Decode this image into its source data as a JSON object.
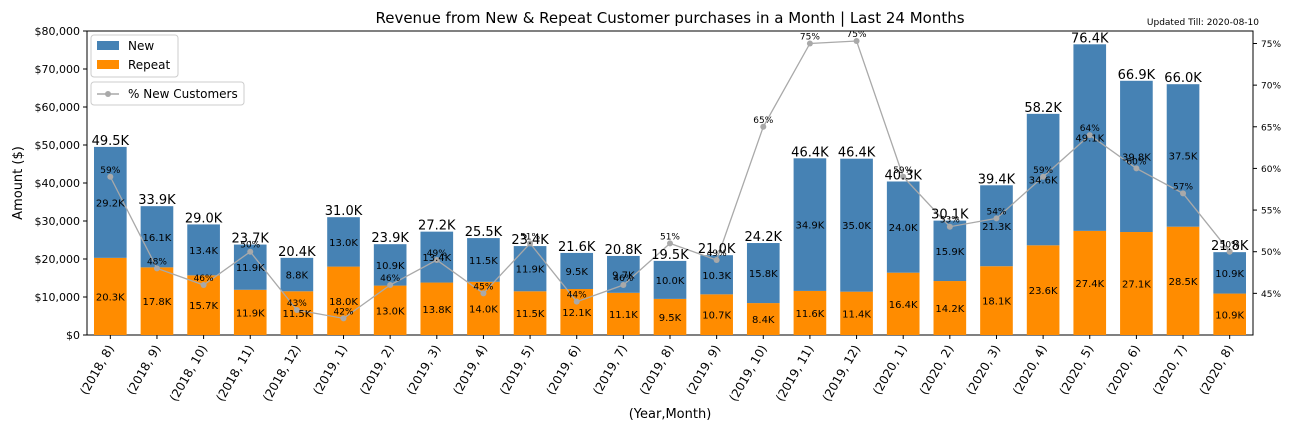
{
  "chart_data": {
    "type": "bar",
    "title": "Revenue from New & Repeat Customer purchases in a Month | Last 24 Months",
    "subtitle": "Updated Till: 2020-08-10",
    "xlabel": "(Year,Month)",
    "ylabel": "Amount ($)",
    "ylim": [
      0,
      80000
    ],
    "y2lim": [
      40,
      76.5
    ],
    "stacked": true,
    "categories": [
      "(2018, 8)",
      "(2018, 9)",
      "(2018, 10)",
      "(2018, 11)",
      "(2018, 12)",
      "(2019, 1)",
      "(2019, 2)",
      "(2019, 3)",
      "(2019, 4)",
      "(2019, 5)",
      "(2019, 6)",
      "(2019, 7)",
      "(2019, 8)",
      "(2019, 9)",
      "(2019, 10)",
      "(2019, 11)",
      "(2019, 12)",
      "(2020, 1)",
      "(2020, 2)",
      "(2020, 3)",
      "(2020, 4)",
      "(2020, 5)",
      "(2020, 6)",
      "(2020, 7)",
      "(2020, 8)"
    ],
    "y_ticks": [
      "$0",
      "$10,000",
      "$20,000",
      "$30,000",
      "$40,000",
      "$50,000",
      "$60,000",
      "$70,000",
      "$80,000"
    ],
    "y2_ticks": [
      "45%",
      "50%",
      "55%",
      "60%",
      "65%",
      "70%",
      "75%"
    ],
    "series": [
      {
        "name": "New",
        "color": "#4682b4",
        "values": [
          29200,
          16100,
          13400,
          11900,
          8800,
          13000,
          10900,
          13400,
          11500,
          11900,
          9500,
          9700,
          10000,
          10300,
          15800,
          34900,
          35000,
          24000,
          15900,
          21300,
          34600,
          49100,
          39800,
          37500,
          10900
        ],
        "labels": [
          "29.2K",
          "16.1K",
          "13.4K",
          "11.9K",
          "8.8K",
          "13.0K",
          "10.9K",
          "13.4K",
          "11.5K",
          "11.9K",
          "9.5K",
          "9.7K",
          "10.0K",
          "10.3K",
          "15.8K",
          "34.9K",
          "35.0K",
          "24.0K",
          "15.9K",
          "21.3K",
          "34.6K",
          "49.1K",
          "39.8K",
          "37.5K",
          "10.9K"
        ]
      },
      {
        "name": "Repeat",
        "color": "#ff8c00",
        "values": [
          20300,
          17800,
          15700,
          11900,
          11500,
          18000,
          13000,
          13800,
          14000,
          11500,
          12100,
          11100,
          9500,
          10700,
          8400,
          11600,
          11400,
          16400,
          14200,
          18100,
          23600,
          27400,
          27100,
          28500,
          10900
        ],
        "labels": [
          "20.3K",
          "17.8K",
          "15.7K",
          "11.9K",
          "11.5K",
          "18.0K",
          "13.0K",
          "13.8K",
          "14.0K",
          "11.5K",
          "12.1K",
          "11.1K",
          "9.5K",
          "10.7K",
          "8.4K",
          "11.6K",
          "11.4K",
          "16.4K",
          "14.2K",
          "18.1K",
          "23.6K",
          "27.4K",
          "27.1K",
          "28.5K",
          "10.9K"
        ]
      }
    ],
    "totals": [
      "49.5K",
      "33.9K",
      "29.0K",
      "23.7K",
      "20.4K",
      "31.0K",
      "23.9K",
      "27.2K",
      "25.5K",
      "23.4K",
      "21.6K",
      "20.8K",
      "19.5K",
      "21.0K",
      "24.2K",
      "46.4K",
      "46.4K",
      "40.3K",
      "30.1K",
      "39.4K",
      "58.2K",
      "76.4K",
      "66.9K",
      "66.0K",
      "21.8K"
    ],
    "pct_series": {
      "name": "% New Customers",
      "color": "#a9a9a9",
      "values": [
        59,
        48,
        46,
        50,
        43,
        42,
        46,
        49,
        45,
        51,
        44,
        46,
        51,
        49,
        65,
        75,
        75.3,
        59,
        53,
        54,
        59,
        64,
        60,
        57,
        50
      ],
      "labels": [
        "59%",
        "48%",
        "46%",
        "50%",
        "43%",
        "42%",
        "46%",
        "49%",
        "45%",
        "51%",
        "44%",
        "46%",
        "51%",
        "49%",
        "65%",
        "75%",
        "75%",
        "59%",
        "53%",
        "54%",
        "59%",
        "64%",
        "60%",
        "57%",
        "50%"
      ]
    },
    "legend": {
      "position": "top-left",
      "items": [
        "New",
        "Repeat"
      ],
      "line_item": "% New Customers"
    }
  }
}
